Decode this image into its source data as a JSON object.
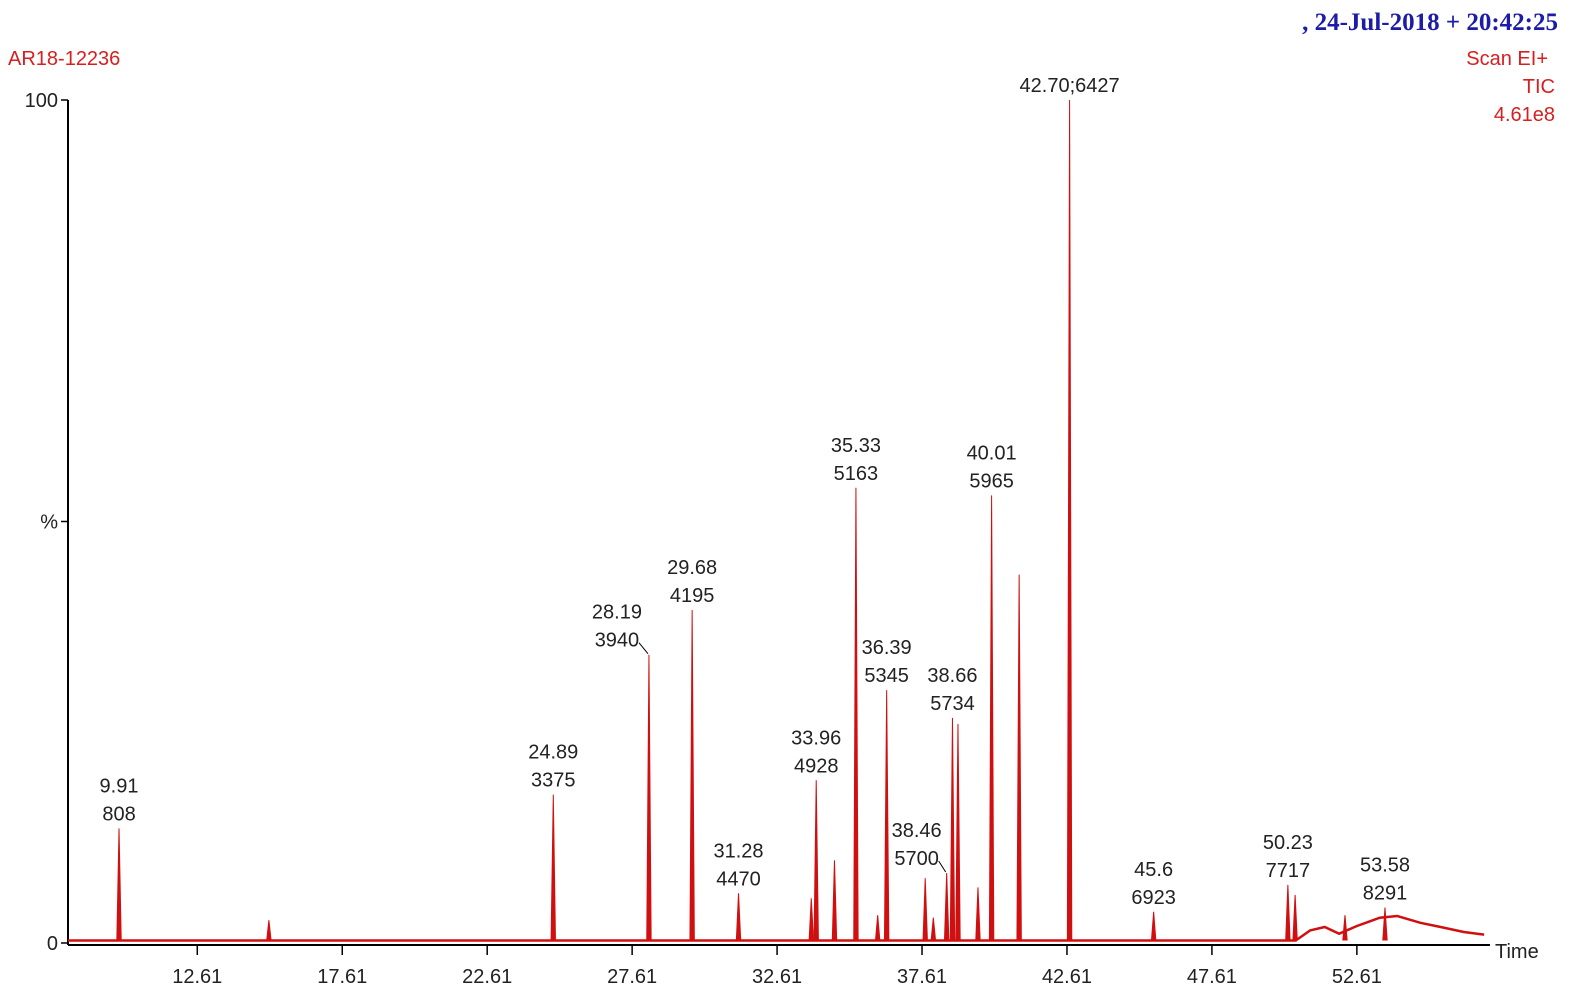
{
  "chart_data": {
    "type": "chromatogram",
    "header": ", 24-Jul-2018 + 20:42:25",
    "sample": "AR18-12236",
    "scan_mode": "Scan EI+",
    "trace": "TIC",
    "max_intensity": "4.61e8",
    "x_label": "Time",
    "color": "#d01010",
    "xlim": [
      8.15,
      57.03
    ],
    "ylim": [
      0,
      100
    ],
    "xticks": [
      12.61,
      17.61,
      22.61,
      27.61,
      32.61,
      37.61,
      42.61,
      47.61,
      52.61
    ],
    "yticks": [
      0,
      {
        "value": 50,
        "label": "%"
      },
      100
    ],
    "peaks": [
      {
        "rt": 9.91,
        "scan": 808,
        "intensity": 13.6
      },
      {
        "rt": 24.89,
        "scan": 3375,
        "intensity": 17.6
      },
      {
        "rt": 28.19,
        "scan": 3940,
        "intensity": 34.2
      },
      {
        "rt": 29.68,
        "scan": 4195,
        "intensity": 39.5
      },
      {
        "rt": 31.28,
        "scan": 4470,
        "intensity": 5.9
      },
      {
        "rt": 33.96,
        "scan": 4928,
        "intensity": 19.3
      },
      {
        "rt": 35.33,
        "scan": 5163,
        "intensity": 54.0
      },
      {
        "rt": 36.39,
        "scan": 5345,
        "intensity": 30.0
      },
      {
        "rt": 38.46,
        "scan": 5700,
        "intensity": 8.3
      },
      {
        "rt": 38.66,
        "scan": 5734,
        "intensity": 26.7
      },
      {
        "rt": 40.01,
        "scan": 5965,
        "intensity": 53.1
      },
      {
        "rt": {
          "value": 42.7,
          "label": "42.70"
        },
        "scan": 6427,
        "intensity": 100,
        "separator": ";"
      },
      {
        "rt": 45.6,
        "scan": 6923,
        "intensity": 3.7
      },
      {
        "rt": 50.23,
        "scan": 7717,
        "intensity": 6.9
      },
      {
        "rt": 53.58,
        "scan": 8291,
        "intensity": 4.2
      }
    ],
    "other_peaks": {
      "x": [
        15.08,
        33.79,
        34.59,
        36.08,
        37.72,
        38.0,
        38.85,
        39.54,
        40.96,
        50.48,
        52.2
      ],
      "values": [
        2.7,
        5.3,
        9.8,
        3.3,
        7.7,
        3.0,
        26.0,
        6.6,
        43.7,
        5.7,
        3.3
      ]
    },
    "baseline": {
      "x": [
        8.15,
        50.5,
        51.0,
        51.5,
        52.0,
        52.6,
        53.0,
        53.4,
        54.0,
        54.8,
        55.5,
        56.3,
        57.0
      ],
      "values": [
        0.3,
        0.3,
        1.5,
        1.9,
        1.1,
        2.0,
        2.5,
        3.0,
        3.2,
        2.4,
        1.9,
        1.3,
        1.0
      ]
    }
  }
}
